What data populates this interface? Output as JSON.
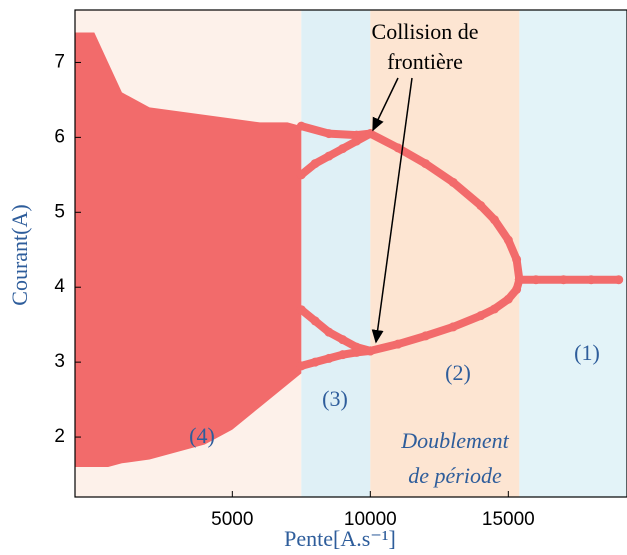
{
  "chart_data": {
    "type": "scatter",
    "xlabel": "Pente[A.s⁻¹]",
    "ylabel": "Courant(A)",
    "xlim": [
      -700,
      19300
    ],
    "ylim": [
      1.2,
      7.7
    ],
    "xticks": [
      5000,
      10000,
      15000
    ],
    "yticks": [
      2,
      3,
      4,
      5,
      6,
      7
    ],
    "regions": [
      {
        "x": [
          -700,
          7500
        ],
        "color": "#fdf1ea"
      },
      {
        "x": [
          7500,
          10000
        ],
        "color": "#dff0f6"
      },
      {
        "x": [
          10000,
          15400
        ],
        "color": "#fde5d2"
      },
      {
        "x": [
          15400,
          19300
        ],
        "color": "#e3f3f8"
      }
    ],
    "annotations": [
      "Collision de",
      "frontière",
      "(1)",
      "(2)",
      "(3)",
      "(4)",
      "Doublement",
      "de période"
    ],
    "series": [
      {
        "kind": "band",
        "color": "#f26b6b",
        "x": [
          -700,
          0,
          500,
          1000,
          2000,
          3000,
          4000,
          5000,
          6000,
          7000,
          7500
        ],
        "high": [
          7.4,
          7.4,
          7.0,
          6.6,
          6.4,
          6.35,
          6.3,
          6.25,
          6.2,
          6.2,
          6.15
        ],
        "low": [
          1.6,
          1.6,
          1.6,
          1.65,
          1.7,
          1.8,
          1.9,
          2.1,
          2.4,
          2.7,
          2.85
        ]
      },
      {
        "kind": "points",
        "color": "#f26b6b",
        "x": [
          7500,
          8500,
          9500,
          10000
        ],
        "values": [
          6.15,
          6.05,
          6.03,
          6.05
        ]
      },
      {
        "kind": "points",
        "color": "#f26b6b",
        "x": [
          7500,
          8000,
          8500,
          9000,
          9500,
          10000
        ],
        "values": [
          5.5,
          5.65,
          5.75,
          5.85,
          5.95,
          6.05
        ]
      },
      {
        "kind": "points",
        "color": "#f26b6b",
        "x": [
          7500,
          8000,
          8500,
          9000,
          9500,
          10000
        ],
        "values": [
          3.7,
          3.55,
          3.4,
          3.3,
          3.2,
          3.15
        ]
      },
      {
        "kind": "points",
        "color": "#f26b6b",
        "x": [
          7500,
          8000,
          8500,
          9000,
          9500,
          10000
        ],
        "values": [
          2.95,
          3.0,
          3.05,
          3.1,
          3.13,
          3.15
        ]
      },
      {
        "kind": "points",
        "color": "#f26b6b",
        "x": [
          10000,
          11000,
          12000,
          13000,
          14000,
          14500,
          15000,
          15300,
          15400
        ],
        "values": [
          6.05,
          5.86,
          5.65,
          5.4,
          5.09,
          4.9,
          4.63,
          4.37,
          4.1
        ]
      },
      {
        "kind": "points",
        "color": "#f26b6b",
        "x": [
          10000,
          11000,
          12000,
          13000,
          14000,
          14500,
          15000,
          15300,
          15400
        ],
        "values": [
          3.15,
          3.24,
          3.35,
          3.47,
          3.62,
          3.71,
          3.84,
          3.97,
          4.1
        ]
      },
      {
        "kind": "points",
        "color": "#f26b6b",
        "x": [
          15400,
          16000,
          17000,
          18000,
          19000
        ],
        "values": [
          4.1,
          4.1,
          4.1,
          4.1,
          4.1
        ]
      }
    ]
  }
}
